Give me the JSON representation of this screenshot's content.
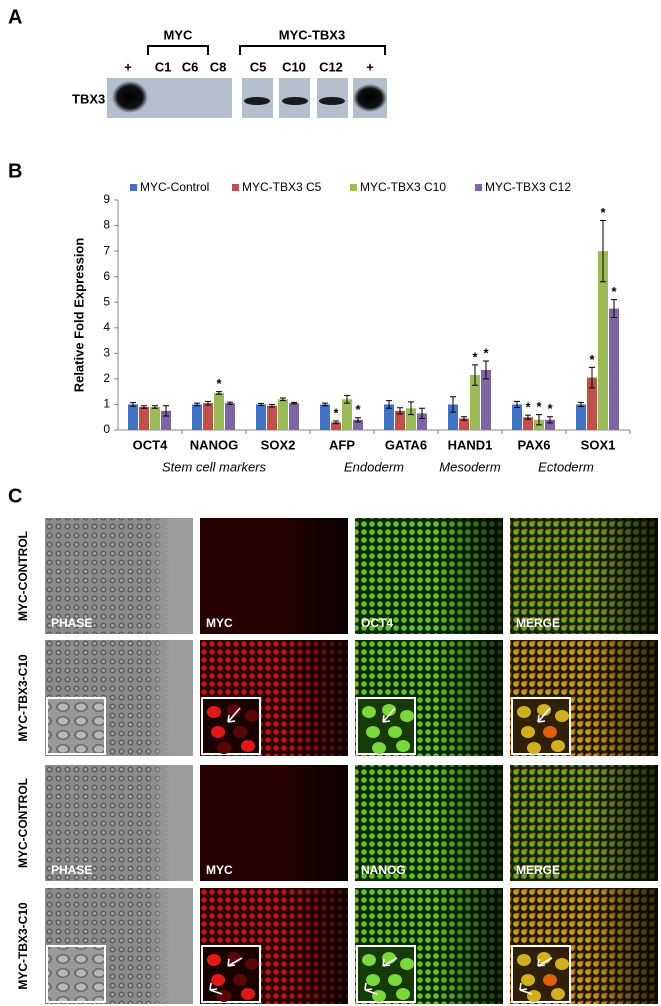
{
  "panel_a": {
    "label": "A",
    "row_label": "TBX3",
    "groups": [
      {
        "label": "MYC"
      },
      {
        "label": "MYC-TBX3"
      }
    ],
    "lanes": [
      "+",
      "C1",
      "C6",
      "C8",
      "C5",
      "C10",
      "C12",
      "+"
    ]
  },
  "panel_b": {
    "label": "B"
  },
  "chart_data": {
    "type": "bar",
    "ylabel": "Relative Fold Expression",
    "categories": [
      "OCT4",
      "NANOG",
      "SOX2",
      "AFP",
      "GATA6",
      "HAND1",
      "PAX6",
      "SOX1"
    ],
    "groups": [
      {
        "label": "Stem cell markers",
        "categories": [
          "OCT4",
          "SOX2"
        ]
      },
      {
        "label": "Endoderm",
        "categories": [
          "AFP",
          "GATA6"
        ]
      },
      {
        "label": "Mesoderm",
        "categories": [
          "HAND1",
          "HAND1"
        ]
      },
      {
        "label": "Ectoderm",
        "categories": [
          "PAX6",
          "SOX1"
        ]
      }
    ],
    "series": [
      {
        "name": "MYC-Control",
        "color": "#4472c4",
        "values": [
          1.0,
          1.0,
          1.0,
          1.0,
          1.0,
          1.0,
          1.0,
          1.0
        ],
        "errors": [
          0.07,
          0.05,
          0.04,
          0.05,
          0.15,
          0.3,
          0.12,
          0.08
        ],
        "stars": [
          null,
          null,
          null,
          null,
          null,
          null,
          null,
          null
        ]
      },
      {
        "name": "MYC-TBX3 C5",
        "color": "#c0504d",
        "values": [
          0.9,
          1.05,
          0.95,
          0.3,
          0.75,
          0.45,
          0.5,
          2.05
        ],
        "errors": [
          0.05,
          0.07,
          0.05,
          0.05,
          0.12,
          0.07,
          0.08,
          0.4
        ],
        "stars": [
          null,
          null,
          null,
          "*",
          null,
          null,
          "*",
          "*"
        ]
      },
      {
        "name": "MYC-TBX3 C10",
        "color": "#9bbb59",
        "values": [
          0.9,
          1.45,
          1.2,
          1.2,
          0.85,
          2.15,
          0.4,
          7.0
        ],
        "errors": [
          0.05,
          0.05,
          0.05,
          0.15,
          0.25,
          0.4,
          0.2,
          1.2
        ],
        "stars": [
          null,
          "*",
          null,
          null,
          null,
          "*",
          "*",
          "*"
        ]
      },
      {
        "name": "MYC-TBX3 C12",
        "color": "#8064a2",
        "values": [
          0.75,
          1.05,
          1.05,
          0.4,
          0.65,
          2.35,
          0.4,
          4.75
        ],
        "errors": [
          0.2,
          0.04,
          0.03,
          0.08,
          0.2,
          0.35,
          0.12,
          0.35
        ],
        "stars": [
          null,
          null,
          null,
          "*",
          null,
          "*",
          "*",
          "*"
        ]
      }
    ],
    "ylim": [
      0,
      9
    ],
    "yticks": [
      0,
      1,
      2,
      3,
      4,
      5,
      6,
      7,
      8,
      9
    ],
    "legend": "top"
  },
  "panel_c": {
    "label": "C",
    "rows": [
      {
        "label": "MYC-CONTROL",
        "panels": [
          "PHASE",
          "MYC",
          "OCT4",
          "MERGE"
        ]
      },
      {
        "label": "MYC-TBX3-C10"
      },
      {
        "label": "MYC-CONTROL",
        "panels": [
          "PHASE",
          "MYC",
          "NANOG",
          "MERGE"
        ]
      },
      {
        "label": "MYC-TBX3-C10"
      }
    ]
  }
}
